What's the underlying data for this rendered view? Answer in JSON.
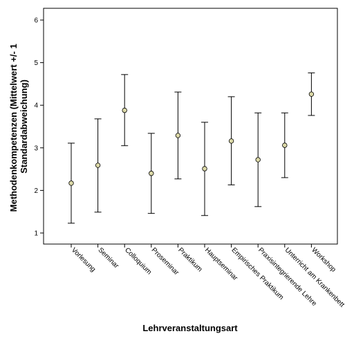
{
  "chart_data": {
    "type": "errorbar",
    "xlabel": "Lehrveranstaltungsart",
    "ylabel_lines": [
      "Methodenkompetenzen (Mittelwert +/- 1",
      "Standardabweichung)"
    ],
    "ylim": [
      0.7,
      6.3
    ],
    "yticks": [
      1,
      2,
      3,
      4,
      5,
      6
    ],
    "grid": false,
    "categories": [
      "Vorlesung",
      "Seminar",
      "Colloquium",
      "Proseminar",
      "Praktikum",
      "Hauptseminar",
      "Empirisches Praktikum",
      "Praxisintegrierende Lehre",
      "Unterricht am Krankenbett",
      "Workshop"
    ],
    "mean": [
      2.17,
      2.59,
      3.88,
      2.4,
      3.29,
      2.51,
      3.16,
      2.72,
      3.06,
      4.26
    ],
    "lower": [
      1.23,
      1.49,
      3.05,
      1.46,
      2.27,
      1.41,
      2.13,
      1.62,
      2.3,
      3.76
    ],
    "upper": [
      3.11,
      3.68,
      4.72,
      3.34,
      4.31,
      3.6,
      4.2,
      3.82,
      3.82,
      4.76
    ],
    "colors": {
      "marker_fill": "#dcd9a8",
      "marker_edge": "#000000",
      "bar": "#000000",
      "axis": "#000000"
    }
  }
}
